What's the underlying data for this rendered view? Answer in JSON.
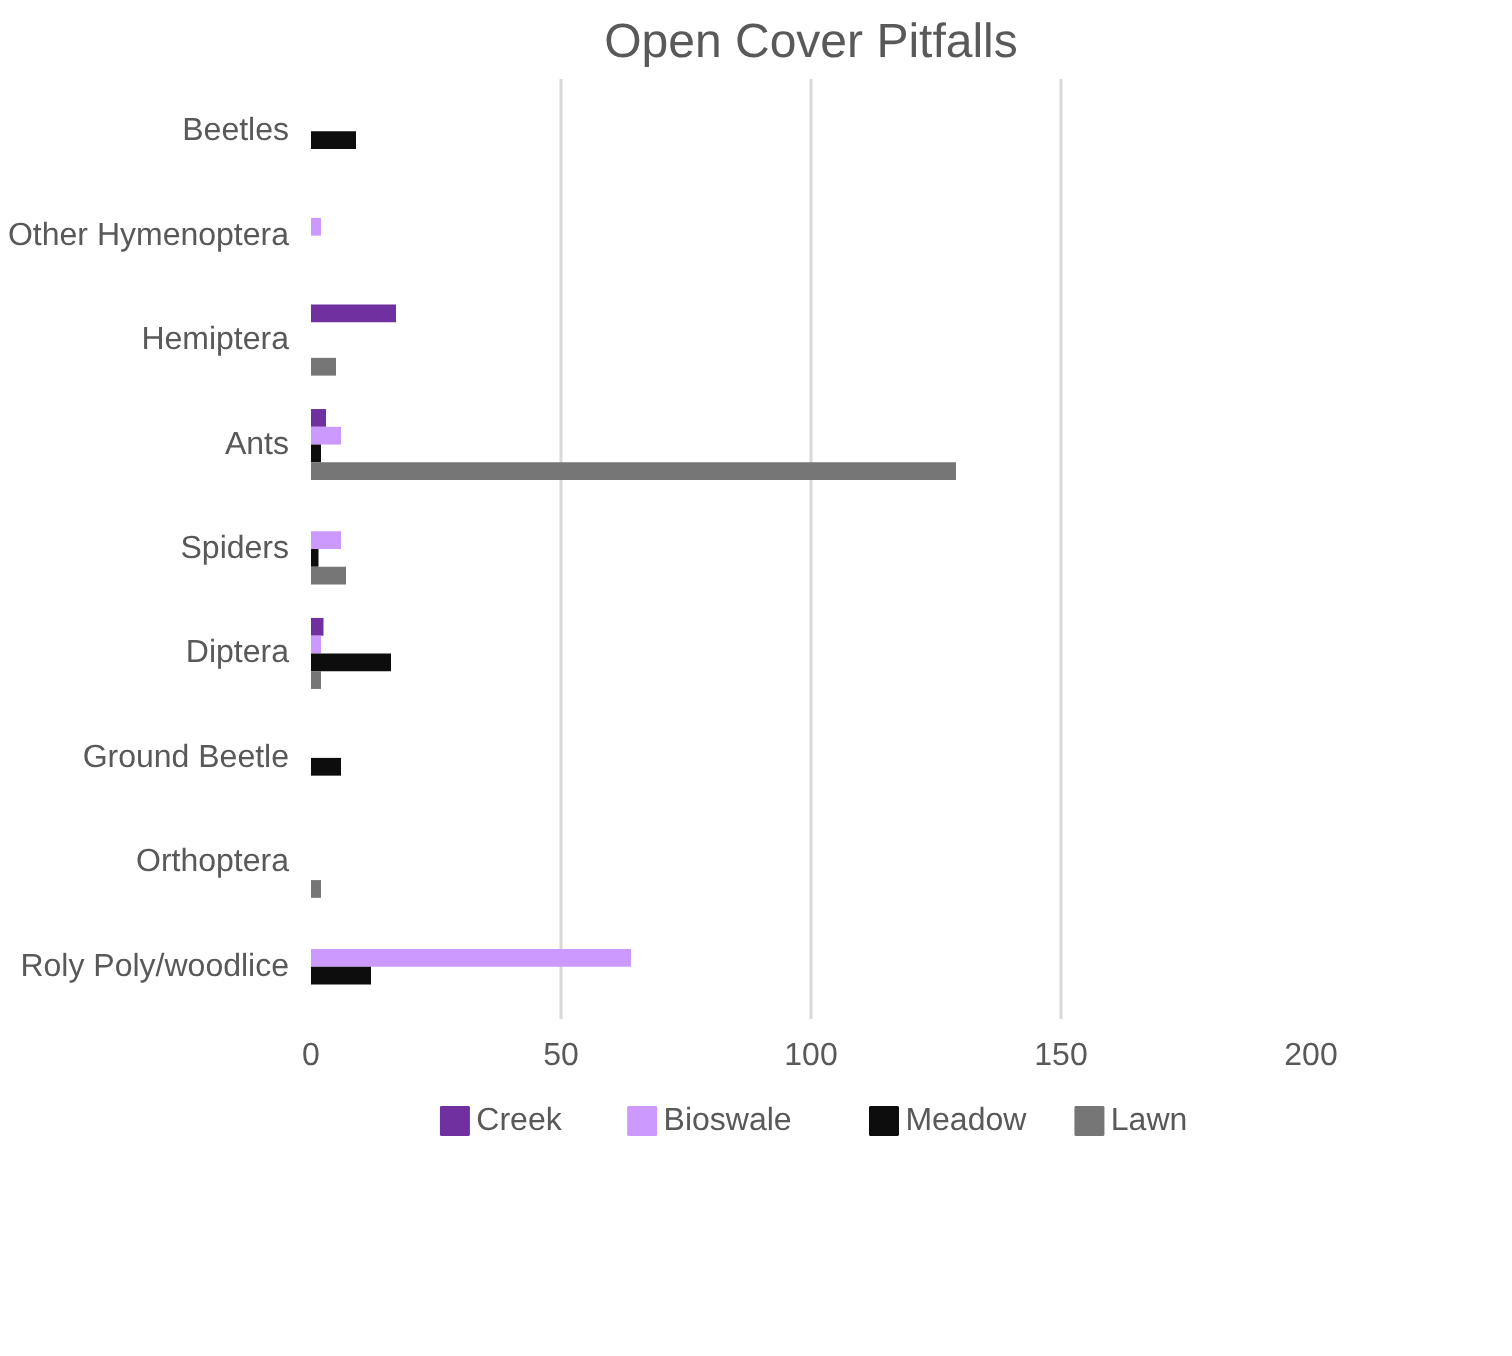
{
  "chart_data": {
    "type": "bar",
    "orientation": "horizontal",
    "title": "Open Cover Pitfalls",
    "categories": [
      "Beetles",
      "Other Hymenoptera",
      "Hemiptera",
      "Ants",
      "Spiders",
      "Diptera",
      "Ground Beetle",
      "Orthoptera",
      "Roly Poly/woodlice"
    ],
    "series": [
      {
        "name": "Creek",
        "color": "#7030a0",
        "values": [
          null,
          null,
          17,
          3,
          null,
          2.5,
          null,
          null,
          null
        ]
      },
      {
        "name": "Bioswale",
        "color": "#cc99ff",
        "values": [
          null,
          2,
          null,
          6,
          6,
          2,
          null,
          null,
          64
        ]
      },
      {
        "name": "Meadow",
        "color": "#0d0d0d",
        "values": [
          9,
          null,
          null,
          2,
          1.5,
          16,
          6,
          null,
          12
        ]
      },
      {
        "name": "Lawn",
        "color": "#767676",
        "values": [
          null,
          null,
          5,
          129,
          7,
          2,
          null,
          2,
          null
        ]
      }
    ],
    "xlim": [
      0,
      200
    ],
    "xticks": [
      0,
      50,
      100,
      150,
      200
    ],
    "grid": "x",
    "legend": "bottom"
  }
}
